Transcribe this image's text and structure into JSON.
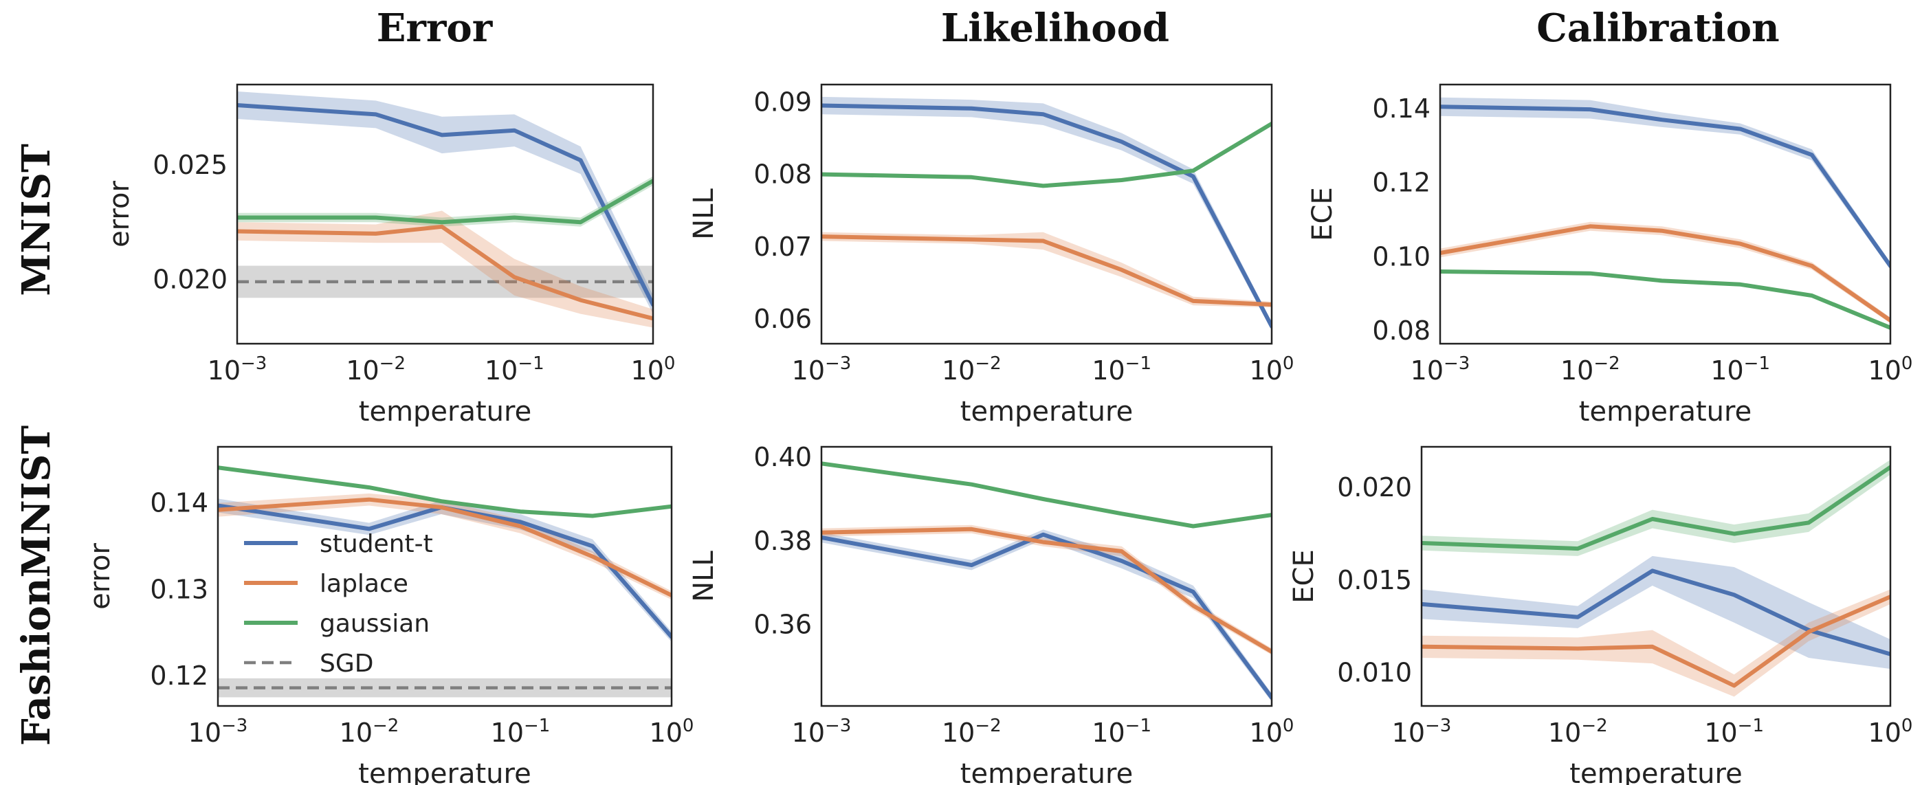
{
  "figure": {
    "column_titles": [
      "Error",
      "Likelihood",
      "Calibration"
    ],
    "row_titles": [
      "MNIST",
      "FashionMNIST"
    ]
  },
  "colors": {
    "student-t": "#4c72b0",
    "laplace": "#dd8452",
    "gaussian": "#55a868",
    "sgd": "#8c8c8c"
  },
  "legend": [
    {
      "key": "student-t",
      "label": "student-t",
      "style": "solid"
    },
    {
      "key": "laplace",
      "label": "laplace",
      "style": "solid"
    },
    {
      "key": "gaussian",
      "label": "gaussian",
      "style": "solid"
    },
    {
      "key": "sgd",
      "label": "SGD",
      "style": "dashed"
    }
  ],
  "chart_data": [
    {
      "type": "line",
      "title": "Error",
      "row": "MNIST",
      "xlabel": "temperature",
      "ylabel": "error",
      "xscale": "log",
      "xlim": [
        0.001,
        1
      ],
      "ylim": [
        0.0172,
        0.0285
      ],
      "xticks": [
        0.001,
        0.01,
        0.1,
        1
      ],
      "xtick_labels": [
        "10",
        "10",
        "10",
        "10"
      ],
      "xtick_exponents": [
        "−3",
        "−2",
        "−1",
        "0"
      ],
      "yticks": [
        0.02,
        0.025
      ],
      "ytick_labels": [
        "0.020",
        "0.025"
      ],
      "x": [
        0.001,
        0.01,
        0.03,
        0.1,
        0.3,
        1
      ],
      "series": [
        {
          "name": "student-t",
          "values": [
            0.0276,
            0.0272,
            0.0263,
            0.0265,
            0.0252,
            0.0189
          ],
          "band": [
            0.0006,
            0.0006,
            0.0008,
            0.0007,
            0.0006,
            0.0004
          ]
        },
        {
          "name": "laplace",
          "values": [
            0.0221,
            0.022,
            0.0223,
            0.0201,
            0.0191,
            0.0183
          ],
          "band": [
            0.0004,
            0.0004,
            0.0007,
            0.0008,
            0.0006,
            0.0004
          ]
        },
        {
          "name": "gaussian",
          "values": [
            0.0227,
            0.0227,
            0.0225,
            0.0227,
            0.0225,
            0.0243
          ],
          "band": [
            0.0002,
            0.0002,
            0.0002,
            0.0002,
            0.0002,
            0.0002
          ]
        }
      ],
      "baseline": {
        "name": "SGD",
        "value": 0.0199,
        "band": 0.0007
      },
      "show_legend": false
    },
    {
      "type": "line",
      "title": "Likelihood",
      "row": "MNIST",
      "xlabel": "temperature",
      "ylabel": "NLL",
      "xscale": "log",
      "xlim": [
        0.001,
        1
      ],
      "ylim": [
        0.0566,
        0.0924
      ],
      "xticks": [
        0.001,
        0.01,
        0.1,
        1
      ],
      "xtick_labels": [
        "10",
        "10",
        "10",
        "10"
      ],
      "xtick_exponents": [
        "−3",
        "−2",
        "−1",
        "0"
      ],
      "yticks": [
        0.06,
        0.07,
        0.08,
        0.09
      ],
      "ytick_labels": [
        "0.06",
        "0.07",
        "0.08",
        "0.09"
      ],
      "x": [
        0.001,
        0.01,
        0.03,
        0.1,
        0.3,
        1
      ],
      "series": [
        {
          "name": "student-t",
          "values": [
            0.0895,
            0.0891,
            0.0883,
            0.0845,
            0.0797,
            0.059
          ],
          "band": [
            0.0012,
            0.0012,
            0.0015,
            0.0012,
            0.001,
            0.0006
          ]
        },
        {
          "name": "laplace",
          "values": [
            0.0714,
            0.071,
            0.0708,
            0.0668,
            0.0625,
            0.062
          ],
          "band": [
            0.0006,
            0.0006,
            0.0012,
            0.001,
            0.0006,
            0.0004
          ]
        },
        {
          "name": "gaussian",
          "values": [
            0.08,
            0.0796,
            0.0784,
            0.0792,
            0.0805,
            0.087
          ],
          "band": [
            0.0002,
            0.0002,
            0.0002,
            0.0002,
            0.0002,
            0.0002
          ]
        }
      ],
      "show_legend": false
    },
    {
      "type": "line",
      "title": "Calibration",
      "row": "MNIST",
      "xlabel": "temperature",
      "ylabel": "ECE",
      "xscale": "log",
      "xlim": [
        0.001,
        1
      ],
      "ylim": [
        0.0765,
        0.1465
      ],
      "xticks": [
        0.001,
        0.01,
        0.1,
        1
      ],
      "xtick_labels": [
        "10",
        "10",
        "10",
        "10"
      ],
      "xtick_exponents": [
        "−3",
        "−2",
        "−1",
        "0"
      ],
      "yticks": [
        0.08,
        0.1,
        0.12,
        0.14
      ],
      "ytick_labels": [
        "0.08",
        "0.10",
        "0.12",
        "0.14"
      ],
      "x": [
        0.001,
        0.01,
        0.03,
        0.1,
        0.3,
        1
      ],
      "series": [
        {
          "name": "student-t",
          "values": [
            0.1405,
            0.1398,
            0.137,
            0.1345,
            0.1275,
            0.0975
          ],
          "band": [
            0.0025,
            0.0025,
            0.002,
            0.0015,
            0.0015,
            0.001
          ]
        },
        {
          "name": "laplace",
          "values": [
            0.101,
            0.1082,
            0.107,
            0.1035,
            0.0975,
            0.0828
          ],
          "band": [
            0.0012,
            0.0012,
            0.0012,
            0.0012,
            0.001,
            0.0008
          ]
        },
        {
          "name": "gaussian",
          "values": [
            0.096,
            0.0955,
            0.0935,
            0.0925,
            0.0895,
            0.0808
          ],
          "band": [
            0.0005,
            0.0005,
            0.0005,
            0.0005,
            0.0005,
            0.0005
          ]
        }
      ],
      "show_legend": false
    },
    {
      "type": "line",
      "title": "",
      "row": "FashionMNIST",
      "xlabel": "temperature",
      "ylabel": "error",
      "xscale": "log",
      "xlim": [
        0.001,
        1
      ],
      "ylim": [
        0.1165,
        0.1465
      ],
      "xticks": [
        0.001,
        0.01,
        0.1,
        1
      ],
      "xtick_labels": [
        "10",
        "10",
        "10",
        "10"
      ],
      "xtick_exponents": [
        "−3",
        "−2",
        "−1",
        "0"
      ],
      "yticks": [
        0.12,
        0.13,
        0.14
      ],
      "ytick_labels": [
        "0.12",
        "0.13",
        "0.14"
      ],
      "x": [
        0.001,
        0.01,
        0.03,
        0.1,
        0.3,
        1
      ],
      "series": [
        {
          "name": "student-t",
          "values": [
            0.1397,
            0.137,
            0.1395,
            0.1378,
            0.135,
            0.1245
          ],
          "band": [
            0.0008,
            0.0007,
            0.0008,
            0.0009,
            0.0008,
            0.0006
          ]
        },
        {
          "name": "laplace",
          "values": [
            0.1392,
            0.1404,
            0.1395,
            0.1373,
            0.1338,
            0.1293
          ],
          "band": [
            0.0008,
            0.0007,
            0.0008,
            0.0008,
            0.0006,
            0.0005
          ]
        },
        {
          "name": "gaussian",
          "values": [
            0.1441,
            0.1418,
            0.1402,
            0.139,
            0.1385,
            0.1396
          ],
          "band": [
            0.0002,
            0.0002,
            0.0002,
            0.0002,
            0.0002,
            0.0002
          ]
        }
      ],
      "baseline": {
        "name": "SGD",
        "value": 0.1186,
        "band": 0.0011
      },
      "show_legend": true
    },
    {
      "type": "line",
      "title": "",
      "row": "FashionMNIST",
      "xlabel": "temperature",
      "ylabel": "NLL",
      "xscale": "log",
      "xlim": [
        0.001,
        1
      ],
      "ylim": [
        0.3405,
        0.4025
      ],
      "xticks": [
        0.001,
        0.01,
        0.1,
        1
      ],
      "xtick_labels": [
        "10",
        "10",
        "10",
        "10"
      ],
      "xtick_exponents": [
        "−3",
        "−2",
        "−1",
        "0"
      ],
      "yticks": [
        0.36,
        0.38,
        0.4
      ],
      "ytick_labels": [
        "0.36",
        "0.38",
        "0.40"
      ],
      "x": [
        0.001,
        0.01,
        0.03,
        0.1,
        0.3,
        1
      ],
      "series": [
        {
          "name": "student-t",
          "values": [
            0.3808,
            0.3742,
            0.3815,
            0.3752,
            0.3678,
            0.3425
          ],
          "band": [
            0.0012,
            0.0012,
            0.0012,
            0.0018,
            0.0015,
            0.001
          ]
        },
        {
          "name": "laplace",
          "values": [
            0.382,
            0.3828,
            0.3797,
            0.3775,
            0.3645,
            0.3535
          ],
          "band": [
            0.001,
            0.001,
            0.001,
            0.0012,
            0.001,
            0.0008
          ]
        },
        {
          "name": "gaussian",
          "values": [
            0.3985,
            0.3935,
            0.39,
            0.3865,
            0.3835,
            0.3862
          ],
          "band": [
            0.0003,
            0.0003,
            0.0003,
            0.0003,
            0.0003,
            0.0003
          ]
        }
      ],
      "show_legend": false
    },
    {
      "type": "line",
      "title": "",
      "row": "FashionMNIST",
      "xlabel": "temperature",
      "ylabel": "ECE",
      "xscale": "log",
      "xlim": [
        0.001,
        1
      ],
      "ylim": [
        0.0082,
        0.0222
      ],
      "xticks": [
        0.001,
        0.01,
        0.1,
        1
      ],
      "xtick_labels": [
        "10",
        "10",
        "10",
        "10"
      ],
      "xtick_exponents": [
        "−3",
        "−2",
        "−1",
        "0"
      ],
      "yticks": [
        0.01,
        0.015,
        0.02
      ],
      "ytick_labels": [
        "0.010",
        "0.015",
        "0.020"
      ],
      "x": [
        0.001,
        0.01,
        0.03,
        0.1,
        0.3,
        1
      ],
      "series": [
        {
          "name": "student-t",
          "values": [
            0.0137,
            0.013,
            0.0155,
            0.0142,
            0.0123,
            0.011
          ],
          "band": [
            0.0008,
            0.0006,
            0.0008,
            0.0015,
            0.0015,
            0.0008
          ]
        },
        {
          "name": "laplace",
          "values": [
            0.0114,
            0.0113,
            0.0114,
            0.0093,
            0.0122,
            0.0141
          ],
          "band": [
            0.0006,
            0.0006,
            0.0009,
            0.0006,
            0.0005,
            0.0004
          ]
        },
        {
          "name": "gaussian",
          "values": [
            0.017,
            0.0167,
            0.0183,
            0.0175,
            0.0181,
            0.0211
          ],
          "band": [
            0.0004,
            0.0004,
            0.0005,
            0.0005,
            0.0005,
            0.0004
          ]
        }
      ],
      "show_legend": false
    }
  ]
}
